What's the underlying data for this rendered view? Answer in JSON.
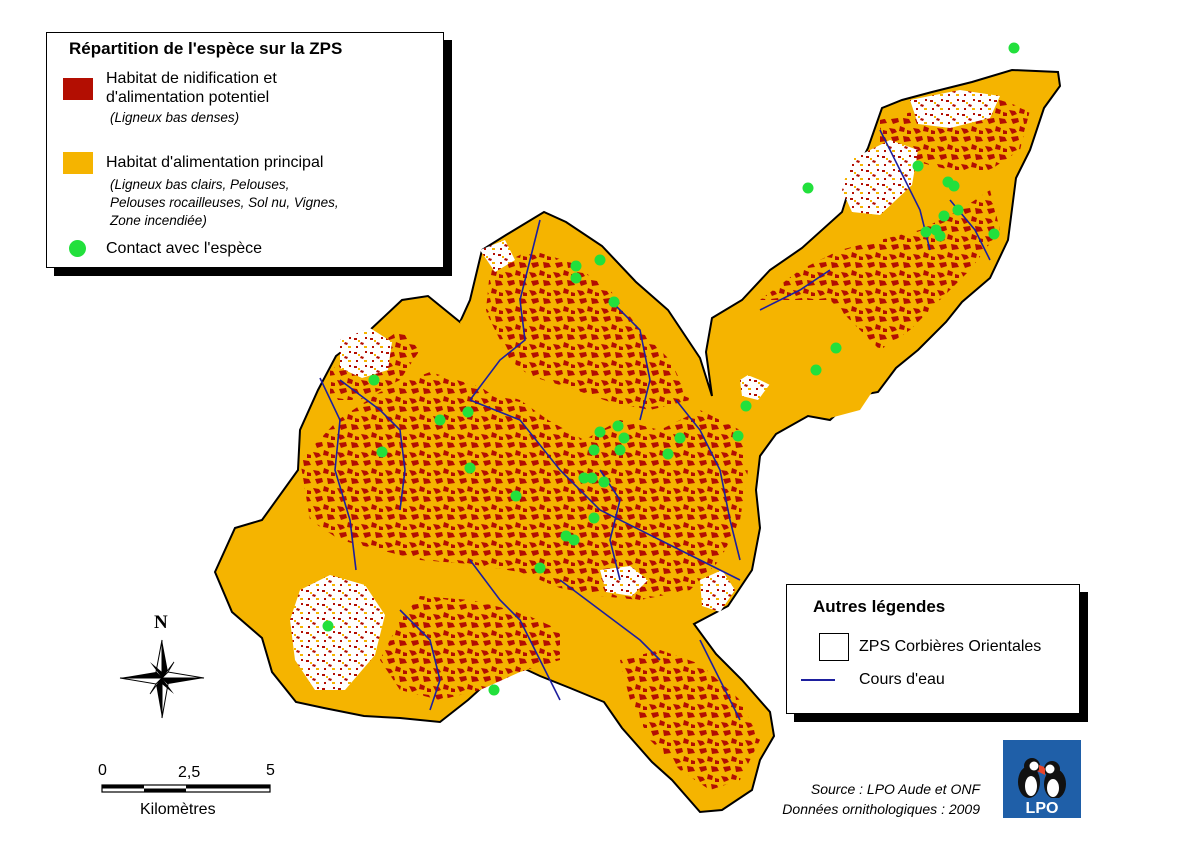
{
  "colors": {
    "nesting_habitat": "#b30e02",
    "feeding_habitat": "#f5b400",
    "contact": "#22e03c",
    "river": "#1d1f9e",
    "lpo_blue": "#1f5fa8"
  },
  "legend": {
    "title": "Répartition de l'espèce sur la ZPS",
    "items": [
      {
        "label": "Habitat de nidification et d'alimentation potentiel",
        "line1": "Habitat de nidification et",
        "line2": "d'alimentation potentiel",
        "detail": "(Ligneux bas denses)"
      },
      {
        "label": "Habitat d'alimentation principal",
        "detail_lines": [
          "(Ligneux bas clairs, Pelouses,",
          "Pelouses rocailleuses, Sol nu, Vignes,",
          "Zone incendiée)"
        ]
      },
      {
        "label": "Contact avec l'espèce"
      }
    ]
  },
  "other_legend": {
    "title": "Autres légendes",
    "items": [
      {
        "label": "ZPS Corbières Orientales"
      },
      {
        "label": "Cours d'eau"
      }
    ]
  },
  "north_arrow": {
    "label": "N"
  },
  "scale_bar": {
    "ticks": [
      "0",
      "2,5",
      "5"
    ],
    "unit": "Kilomètres"
  },
  "source": {
    "line1": "Source : LPO Aude et ONF",
    "line2": "Données ornithologiques : 2009"
  },
  "logo": {
    "text": "LPO"
  }
}
